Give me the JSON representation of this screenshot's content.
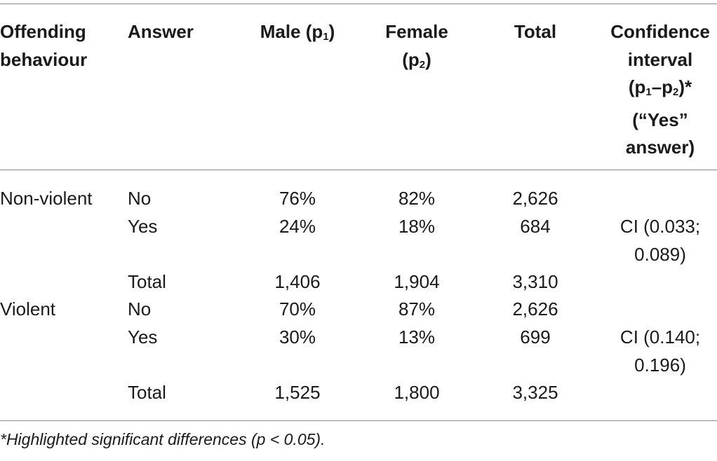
{
  "table": {
    "headers": {
      "offending": [
        "Offending",
        "behaviour"
      ],
      "answer": "Answer",
      "male": {
        "text": "Male (p",
        "sub": "1",
        "close": ")"
      },
      "female": {
        "line1": "Female",
        "line2_open": "(p",
        "line2_sub": "2",
        "line2_close": ")"
      },
      "total": "Total",
      "ci": {
        "line1": "Confidence",
        "line2": "interval",
        "line3_open": "(p",
        "line3_sub1": "1",
        "line3_dash": "–p",
        "line3_sub2": "2",
        "line3_close": ")*",
        "line4": "(“Yes”",
        "line5": "answer)"
      }
    },
    "groups": [
      {
        "behaviour": "Non-violent",
        "rows": [
          {
            "answer": "No",
            "male": "76%",
            "female": "82%",
            "total": "2,626"
          },
          {
            "answer": "Yes",
            "male": "24%",
            "female": "18%",
            "total": "684"
          },
          {
            "answer": "Total",
            "male": "1,406",
            "female": "1,904",
            "total": "3,310"
          }
        ],
        "ci": [
          "CI (0.033;",
          "0.089)"
        ]
      },
      {
        "behaviour": "Violent",
        "rows": [
          {
            "answer": "No",
            "male": "70%",
            "female": "87%",
            "total": "2,626"
          },
          {
            "answer": "Yes",
            "male": "30%",
            "female": "13%",
            "total": "699"
          },
          {
            "answer": "Total",
            "male": "1,525",
            "female": "1,800",
            "total": "3,325"
          }
        ],
        "ci": [
          "CI (0.140;",
          "0.196)"
        ]
      }
    ]
  },
  "footnote": "*Highlighted significant differences (p < 0.05)."
}
